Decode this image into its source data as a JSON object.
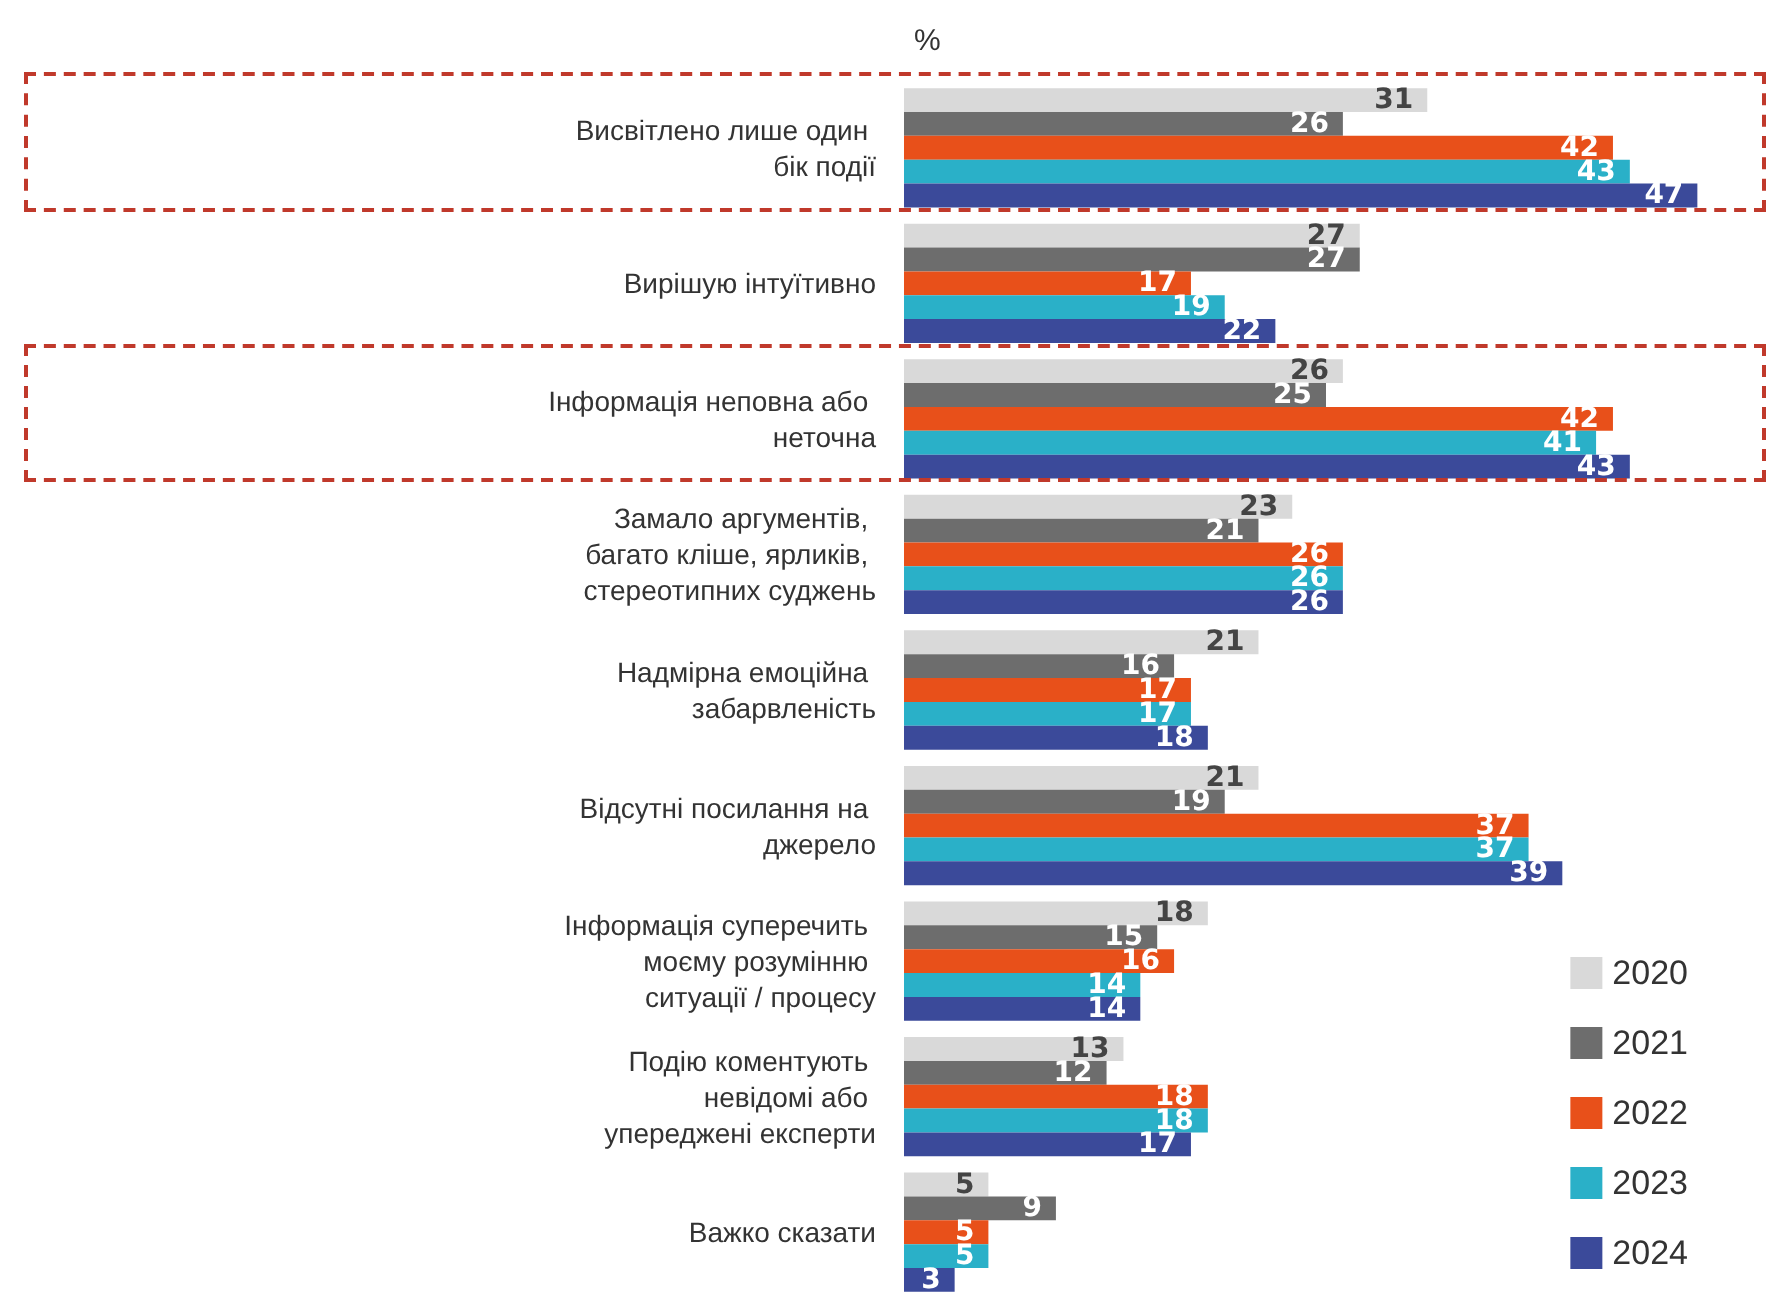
{
  "chart_data": {
    "type": "bar",
    "orientation": "horizontal",
    "title": "%",
    "categories": [
      "Висвітлено лише один бік події",
      "Вирішую інтуїтивно",
      "Інформація неповна або неточна",
      "Замало аргументів, багато кліше, ярликів, стереотипних суджень",
      "Надмірна емоційна забарвленість",
      "Відсутні посилання на джерело",
      "Інформація суперечить моєму розумінню ситуації / процесу",
      "Подію коментують невідомі або упереджені експерти",
      "Важко сказати"
    ],
    "series": [
      {
        "name": "2020",
        "color": "#d9d9d9",
        "values": [
          31,
          27,
          26,
          23,
          21,
          21,
          18,
          13,
          5
        ]
      },
      {
        "name": "2021",
        "color": "#6d6d6d",
        "values": [
          26,
          27,
          25,
          21,
          16,
          19,
          15,
          12,
          9
        ]
      },
      {
        "name": "2022",
        "color": "#e8501a",
        "values": [
          42,
          17,
          42,
          26,
          17,
          37,
          16,
          18,
          5
        ]
      },
      {
        "name": "2023",
        "color": "#2ab0c8",
        "values": [
          43,
          19,
          41,
          26,
          17,
          37,
          14,
          18,
          5
        ]
      },
      {
        "name": "2024",
        "color": "#3b4a9a",
        "values": [
          47,
          22,
          43,
          26,
          18,
          39,
          14,
          17,
          3
        ]
      }
    ],
    "data_labels": true,
    "legend": "bottom right"
  }
}
